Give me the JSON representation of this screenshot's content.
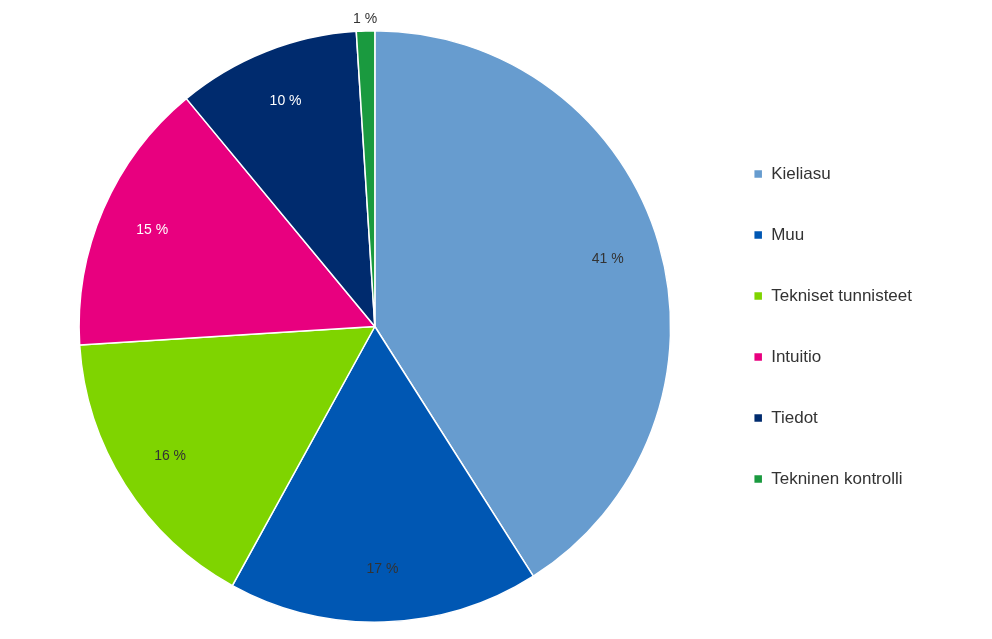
{
  "chart_data": {
    "type": "pie",
    "categories": [
      "Kieliasu",
      "Muu",
      "Tekniset tunnisteet",
      "Intuitio",
      "Tiedot",
      "Tekninen kontrolli"
    ],
    "values": [
      41,
      17,
      16,
      15,
      10,
      1
    ],
    "value_labels": [
      "41 %",
      "17 %",
      "16 %",
      "15 %",
      "10 %",
      "1 %"
    ],
    "colors": [
      "#679ccf",
      "#0057b3",
      "#7fd400",
      "#e8007f",
      "#002b6e",
      "#1a9a3f"
    ],
    "data_labels": true,
    "legend": "right"
  }
}
